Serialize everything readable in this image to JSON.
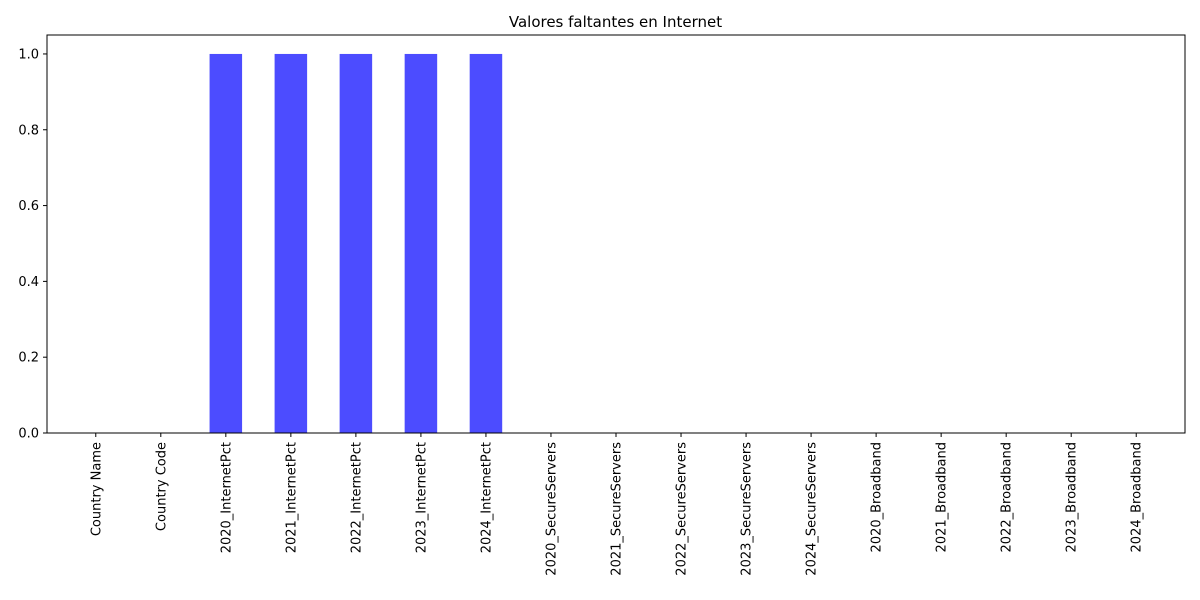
{
  "chart_data": {
    "type": "bar",
    "title": "Valores faltantes en Internet",
    "xlabel": "",
    "ylabel": "",
    "categories": [
      "Country Name",
      "Country Code",
      "2020_InternetPct",
      "2021_InternetPct",
      "2022_InternetPct",
      "2023_InternetPct",
      "2024_InternetPct",
      "2020_SecureServers",
      "2021_SecureServers",
      "2022_SecureServers",
      "2023_SecureServers",
      "2024_SecureServers",
      "2020_Broadband",
      "2021_Broadband",
      "2022_Broadband",
      "2023_Broadband",
      "2024_Broadband"
    ],
    "values": [
      0,
      0,
      1,
      1,
      1,
      1,
      1,
      0,
      0,
      0,
      0,
      0,
      0,
      0,
      0,
      0,
      0
    ],
    "ylim": [
      0,
      1.05
    ],
    "yticks": [
      "0.0",
      "0.2",
      "0.4",
      "0.6",
      "0.8",
      "1.0"
    ],
    "bar_color": "#4c4cff",
    "grid": false,
    "legend": "none"
  }
}
